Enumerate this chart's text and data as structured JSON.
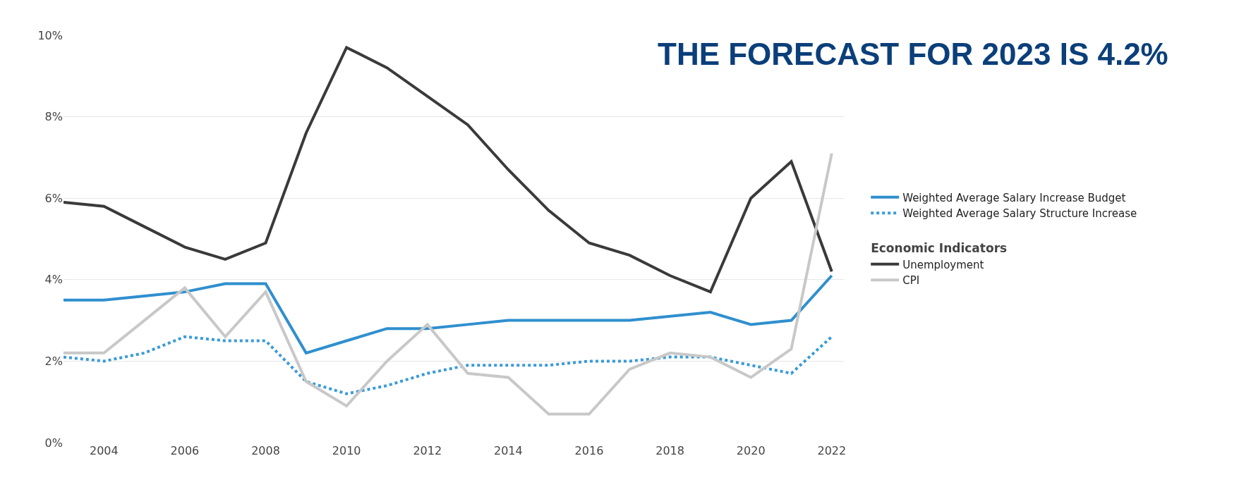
{
  "chart_data": {
    "type": "line",
    "title": "THE FORECAST FOR 2023 IS 4.2%",
    "legend_title": "Economic Indicators",
    "x": [
      2003,
      2004,
      2005,
      2006,
      2007,
      2008,
      2009,
      2010,
      2011,
      2012,
      2013,
      2014,
      2015,
      2016,
      2017,
      2018,
      2019,
      2020,
      2021,
      2022
    ],
    "series": [
      {
        "name": "Weighted Average Salary Increase Budget",
        "color": "#2f8fce",
        "values": [
          3.5,
          3.5,
          3.6,
          3.7,
          3.9,
          3.9,
          2.2,
          2.5,
          2.8,
          2.8,
          2.9,
          3.0,
          3.0,
          3.0,
          3.0,
          3.1,
          3.2,
          2.9,
          3.0,
          4.1
        ]
      },
      {
        "name": "Weighted Average Salary Structure Increase",
        "color": "#3a9ad9",
        "line_style": "dotted",
        "values": [
          2.1,
          2.0,
          2.2,
          2.6,
          2.5,
          2.5,
          1.5,
          1.2,
          1.4,
          1.7,
          1.9,
          1.9,
          1.9,
          2.0,
          2.0,
          2.1,
          2.1,
          1.9,
          1.7,
          2.6
        ]
      },
      {
        "name": "Unemployment",
        "color": "#3a3a3a",
        "values": [
          5.9,
          5.8,
          5.3,
          4.8,
          4.5,
          4.9,
          7.6,
          9.7,
          9.2,
          8.5,
          7.8,
          6.7,
          5.7,
          4.9,
          4.6,
          4.1,
          3.7,
          6.0,
          6.9,
          4.2
        ]
      },
      {
        "name": "CPI",
        "color": "#c8c8c8",
        "values": [
          2.2,
          2.2,
          3.0,
          3.8,
          2.6,
          3.7,
          1.5,
          0.9,
          2.0,
          2.9,
          1.7,
          1.6,
          0.7,
          0.7,
          1.8,
          2.2,
          2.1,
          1.6,
          2.3,
          7.1
        ]
      }
    ],
    "xlim": [
      2003,
      2022.3
    ],
    "xticks": [
      2004,
      2006,
      2008,
      2010,
      2012,
      2014,
      2016,
      2018,
      2020,
      2022
    ],
    "ylim": [
      0,
      10
    ],
    "yticks": [
      {
        "value": 0,
        "label": "0%"
      },
      {
        "value": 2,
        "label": "2%"
      },
      {
        "value": 4,
        "label": "4%"
      },
      {
        "value": 6,
        "label": "6%"
      },
      {
        "value": 8,
        "label": "8%"
      },
      {
        "value": 10,
        "label": "10%"
      }
    ],
    "grid": "y",
    "legend": "right",
    "line_style": "solid",
    "marker": "none"
  }
}
